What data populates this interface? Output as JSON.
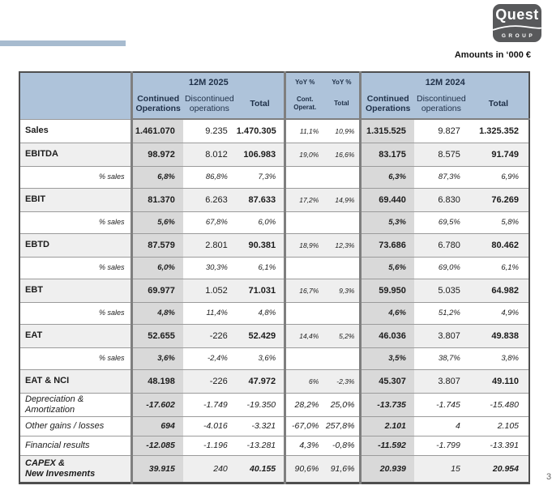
{
  "page": {
    "amounts_note": "Amounts in ‘000 €",
    "page_number": "3"
  },
  "logo": {
    "name": "Quest",
    "subtitle": "GROUP"
  },
  "colors": {
    "header_blue": "#aec3da",
    "continued_column_gray": "#d9d9d9",
    "shaded_row_gray": "#efefef",
    "logo_gray": "#58595b",
    "accent_bar_blue": "#a7bbcf"
  },
  "table": {
    "groups": {
      "y2025": "12M 2025",
      "yoy": [
        "YoY %",
        "YoY %"
      ],
      "y2024": "12M 2024"
    },
    "subheaders": {
      "continued": "Continued Operations",
      "discontinued": "Discontinued operations",
      "total": "Total",
      "yoy_cont": "Cont. Operat.",
      "yoy_total": "Total"
    },
    "rows": [
      {
        "label": "Sales",
        "type": "metric",
        "shade": false,
        "cells": [
          "1.461.070",
          "9.235",
          "1.470.305",
          "11,1%",
          "10,9%",
          "1.315.525",
          "9.827",
          "1.325.352"
        ]
      },
      {
        "label": "EBITDA",
        "type": "metric",
        "shade": true,
        "cells": [
          "98.972",
          "8.012",
          "106.983",
          "19,0%",
          "16,6%",
          "83.175",
          "8.575",
          "91.749"
        ]
      },
      {
        "label": "% sales",
        "type": "pct",
        "shade": false,
        "cells": [
          "6,8%",
          "86,8%",
          "7,3%",
          "",
          "",
          "6,3%",
          "87,3%",
          "6,9%"
        ]
      },
      {
        "label": "EBIT",
        "type": "metric",
        "shade": true,
        "cells": [
          "81.370",
          "6.263",
          "87.633",
          "17,2%",
          "14,9%",
          "69.440",
          "6.830",
          "76.269"
        ]
      },
      {
        "label": "% sales",
        "type": "pct",
        "shade": false,
        "cells": [
          "5,6%",
          "67,8%",
          "6,0%",
          "",
          "",
          "5,3%",
          "69,5%",
          "5,8%"
        ]
      },
      {
        "label": "EBTD",
        "type": "metric",
        "shade": true,
        "cells": [
          "87.579",
          "2.801",
          "90.381",
          "18,9%",
          "12,3%",
          "73.686",
          "6.780",
          "80.462"
        ]
      },
      {
        "label": "% sales",
        "type": "pct",
        "shade": false,
        "cells": [
          "6,0%",
          "30,3%",
          "6,1%",
          "",
          "",
          "5,6%",
          "69,0%",
          "6,1%"
        ]
      },
      {
        "label": "EBT",
        "type": "metric",
        "shade": true,
        "cells": [
          "69.977",
          "1.052",
          "71.031",
          "16,7%",
          "9,3%",
          "59.950",
          "5.035",
          "64.982"
        ]
      },
      {
        "label": "% sales",
        "type": "pct",
        "shade": false,
        "cells": [
          "4,8%",
          "11,4%",
          "4,8%",
          "",
          "",
          "4,6%",
          "51,2%",
          "4,9%"
        ]
      },
      {
        "label": "EAT",
        "type": "metric",
        "shade": true,
        "cells": [
          "52.655",
          "-226",
          "52.429",
          "14,4%",
          "5,2%",
          "46.036",
          "3.807",
          "49.838"
        ]
      },
      {
        "label": "% sales",
        "type": "pct",
        "shade": false,
        "cells": [
          "3,6%",
          "-2,4%",
          "3,6%",
          "",
          "",
          "3,5%",
          "38,7%",
          "3,8%"
        ]
      },
      {
        "label": "EAT & NCI",
        "type": "metric",
        "shade": true,
        "cells": [
          "48.198",
          "-226",
          "47.972",
          "6%",
          "-2,3%",
          "45.307",
          "3.807",
          "49.110"
        ]
      },
      {
        "label": "Depreciation &\nAmortization",
        "type": "ital",
        "shade": false,
        "cells": [
          "-17.602",
          "-1.749",
          "-19.350",
          "28,2%",
          "25,0%",
          "-13.735",
          "-1.745",
          "-15.480"
        ]
      },
      {
        "label": "Other gains / losses",
        "type": "ital",
        "shade": false,
        "cells": [
          "694",
          "-4.016",
          "-3.321",
          "-67,0%",
          "257,8%",
          "2.101",
          "4",
          "2.105"
        ]
      },
      {
        "label": "Financial results",
        "type": "ital",
        "shade": false,
        "cells": [
          "-12.085",
          "-1.196",
          "-13.281",
          "4,3%",
          "-0,8%",
          "-11.592",
          "-1.799",
          "-13.391"
        ]
      },
      {
        "label": "CAPEX &\nNew Invesments",
        "type": "capex",
        "shade": true,
        "cells": [
          "39.915",
          "240",
          "40.155",
          "90,6%",
          "91,6%",
          "20.939",
          "15",
          "20.954"
        ]
      }
    ]
  }
}
